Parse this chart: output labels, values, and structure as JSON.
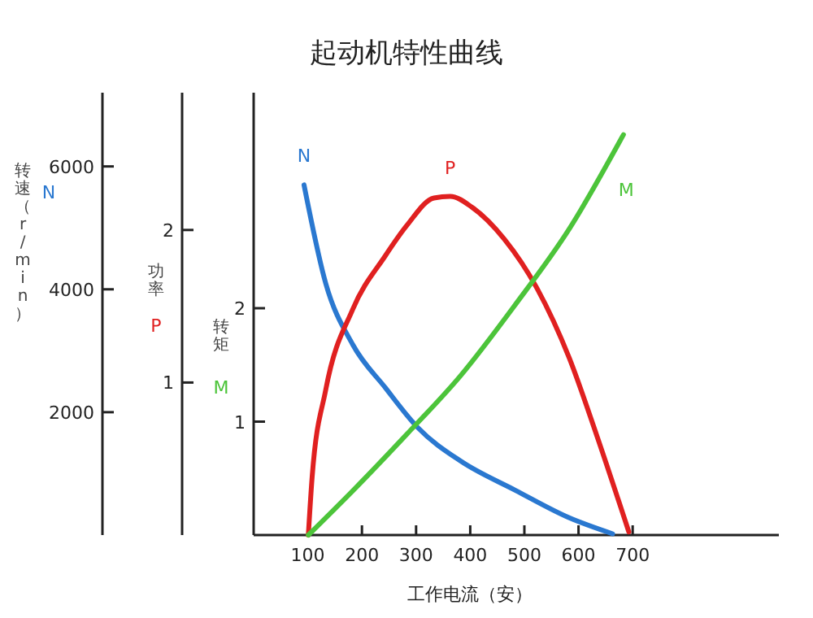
{
  "chart_data": {
    "type": "line",
    "title": "起动机特性曲线",
    "xlabel": "工作电流（安）",
    "ylabel": "转矩",
    "y2label": "功率",
    "y3label": "转速（r/min）",
    "xlim": [
      0,
      970
    ],
    "xticks": [
      100,
      200,
      300,
      400,
      500,
      600,
      700
    ],
    "ylim": [
      0,
      3.9
    ],
    "yticks": [
      1,
      2
    ],
    "y2lim": [
      0,
      2.9
    ],
    "y2ticks": [
      1,
      2
    ],
    "y3lim": [
      0,
      7200
    ],
    "y3ticks": [
      2000,
      4000,
      6000
    ],
    "grid": false,
    "legend": false,
    "marker": "none",
    "line_style": "solid",
    "series": [
      {
        "name": "N",
        "color": "#2a78d0",
        "axis": "y3",
        "x": [
          93,
          133,
          183,
          243,
          303,
          383,
          483,
          583,
          663
        ],
        "values": [
          5700,
          4100,
          3100,
          2400,
          1750,
          1200,
          730,
          280,
          20
        ]
      },
      {
        "name": "P",
        "color": "#e02020",
        "axis": "y2",
        "x": [
          101,
          108,
          133,
          183,
          243,
          283,
          333,
          363,
          403,
          463,
          523,
          583,
          633,
          693
        ],
        "values": [
          0,
          0.38,
          0.95,
          1.48,
          1.83,
          2.03,
          2.21,
          2.22,
          2.15,
          1.94,
          1.62,
          1.16,
          0.66,
          0.02
        ]
      },
      {
        "name": "M",
        "color": "#4cc43a",
        "axis": "y",
        "x": [
          101,
          183,
          283,
          383,
          483,
          583,
          683
        ],
        "values": [
          0,
          0.39,
          0.89,
          1.41,
          2.03,
          2.7,
          3.53
        ]
      }
    ]
  }
}
